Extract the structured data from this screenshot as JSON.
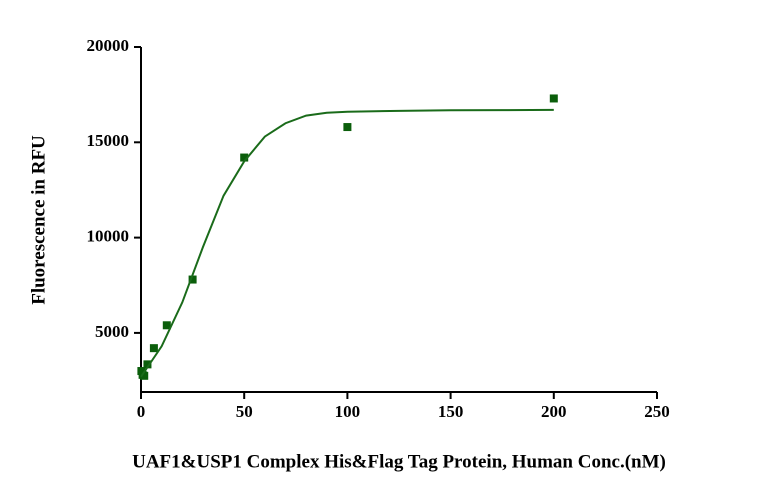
{
  "chart_data": {
    "type": "scatter",
    "x_label": "UAF1&USP1 Complex His&Flag Tag Protein, Human Conc.(nM)",
    "y_label": "Fluorescence in RFU",
    "xlim": [
      0,
      250
    ],
    "xticks": [
      0,
      50,
      100,
      150,
      200,
      250
    ],
    "ylim": [
      1900,
      20000
    ],
    "yticks": [
      5000,
      10000,
      15000,
      20000
    ],
    "series": [
      {
        "type": "scatter",
        "color": "#0b5e0b",
        "x": [
          0.195,
          0.78,
          1.56,
          3.125,
          6.25,
          12.5,
          25,
          50,
          100,
          200
        ],
        "values": [
          3000,
          2800,
          2750,
          3350,
          4200,
          5400,
          7800,
          14200,
          15800,
          17300
        ]
      },
      {
        "type": "line",
        "color": "#1a6b1a",
        "x": [
          0,
          10,
          20,
          30,
          40,
          50,
          60,
          70,
          80,
          90,
          100,
          125,
          150,
          175,
          200
        ],
        "values": [
          2700,
          4300,
          6600,
          9500,
          12200,
          14000,
          15300,
          16000,
          16400,
          16550,
          16600,
          16650,
          16680,
          16690,
          16700
        ]
      }
    ]
  }
}
